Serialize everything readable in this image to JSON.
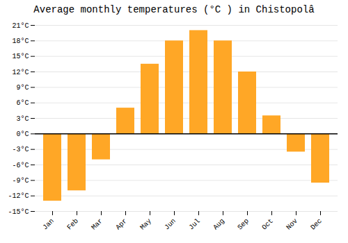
{
  "chart_data": {
    "type": "bar",
    "title": "Average monthly temperatures (°C ) in Chistopolâ",
    "categories": [
      "Jan",
      "Feb",
      "Mar",
      "Apr",
      "May",
      "Jun",
      "Jul",
      "Aug",
      "Sep",
      "Oct",
      "Nov",
      "Dec"
    ],
    "values": [
      -13.0,
      -11.0,
      -5.0,
      5.0,
      13.5,
      18.0,
      20.0,
      18.0,
      12.0,
      3.5,
      -3.5,
      -9.5
    ],
    "color": "#FFA726",
    "ylim": [
      -15,
      21
    ],
    "yticks": [
      {
        "value": -15,
        "label": "-15°C"
      },
      {
        "value": -12,
        "label": "-12°C"
      },
      {
        "value": -9,
        "label": "-9°C"
      },
      {
        "value": -6,
        "label": "-6°C"
      },
      {
        "value": -3,
        "label": "-3°C"
      },
      {
        "value": 0,
        "label": "0°C"
      },
      {
        "value": 3,
        "label": "3°C"
      },
      {
        "value": 6,
        "label": "6°C"
      },
      {
        "value": 9,
        "label": "9°C"
      },
      {
        "value": 12,
        "label": "12°C"
      },
      {
        "value": 15,
        "label": "15°C"
      },
      {
        "value": 18,
        "label": "18°C"
      },
      {
        "value": 21,
        "label": "21°C"
      }
    ],
    "grid": true
  }
}
